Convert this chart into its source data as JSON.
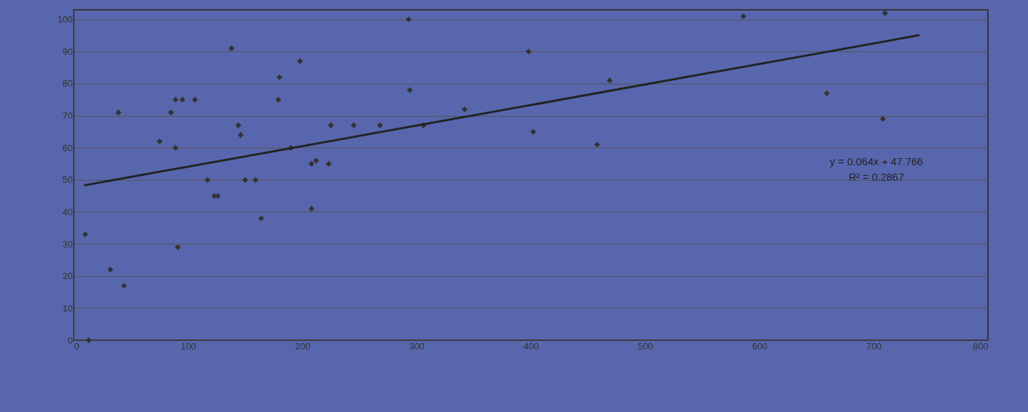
{
  "chart_data": {
    "type": "scatter",
    "xlim": [
      0,
      800
    ],
    "ylim": [
      0,
      103
    ],
    "xticks": [
      0,
      100,
      200,
      300,
      400,
      500,
      600,
      700,
      800
    ],
    "yticks": [
      0,
      10,
      20,
      30,
      40,
      50,
      60,
      70,
      80,
      90,
      100
    ],
    "grid": "y",
    "marker": "diamond",
    "series": [
      {
        "color": "#333333",
        "x": [
          10,
          13,
          32,
          39,
          44,
          75,
          85,
          89,
          95,
          89,
          91,
          106,
          117,
          123,
          126,
          138,
          144,
          146,
          150,
          159,
          164,
          179,
          180,
          190,
          198,
          208,
          208,
          212,
          223,
          225,
          245,
          268,
          293,
          294,
          306,
          342,
          398,
          402,
          458,
          469,
          586,
          659,
          708,
          710
        ],
        "values": [
          33,
          0,
          22,
          71,
          17,
          62,
          71,
          75,
          75,
          60,
          29,
          75,
          50,
          45,
          45,
          91,
          67,
          64,
          50,
          50,
          38,
          75,
          82,
          60,
          87,
          41,
          55,
          56,
          55,
          67,
          67,
          67,
          100,
          78,
          67,
          72,
          90,
          65,
          61,
          81,
          101,
          77,
          69,
          102
        ]
      },
      {
        "type": "line",
        "marker": "none",
        "color": "#222222",
        "x": [
          9,
          740
        ],
        "values": [
          48.3,
          95.1
        ]
      }
    ],
    "annotations": [
      "y = 0.064x + 47.766",
      "R² = 0.2867"
    ]
  }
}
